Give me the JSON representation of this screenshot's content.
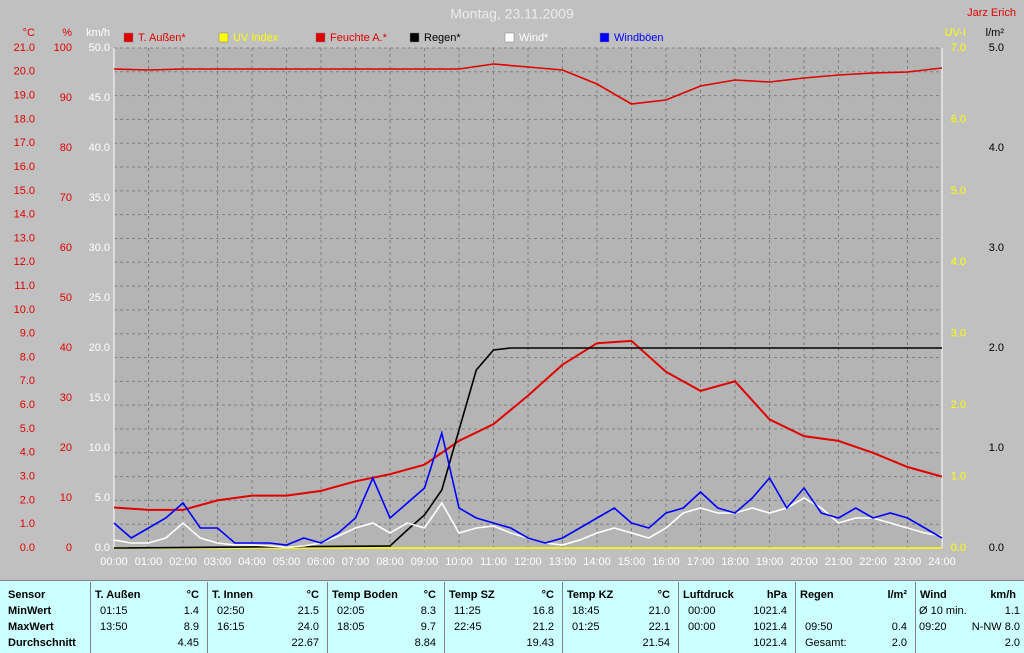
{
  "chart_data": {
    "type": "line",
    "title": "Montag, 23.11.2009",
    "author": "Jarz Erich",
    "xlim": [
      0,
      24
    ],
    "xticks": [
      {
        "value": 0,
        "label": "00:00"
      },
      {
        "value": 1,
        "label": "01:00"
      },
      {
        "value": 2,
        "label": "02:00"
      },
      {
        "value": 3,
        "label": "03:00"
      },
      {
        "value": 4,
        "label": "04:00"
      },
      {
        "value": 5,
        "label": "05:00"
      },
      {
        "value": 6,
        "label": "06:00"
      },
      {
        "value": 7,
        "label": "07:00"
      },
      {
        "value": 8,
        "label": "08:00"
      },
      {
        "value": 9,
        "label": "09:00"
      },
      {
        "value": 10,
        "label": "10:00"
      },
      {
        "value": 11,
        "label": "11:00"
      },
      {
        "value": 12,
        "label": "12:00"
      },
      {
        "value": 13,
        "label": "13:00"
      },
      {
        "value": 14,
        "label": "14:00"
      },
      {
        "value": 15,
        "label": "15:00"
      },
      {
        "value": 16,
        "label": "16:00"
      },
      {
        "value": 17,
        "label": "17:00"
      },
      {
        "value": 18,
        "label": "18:00"
      },
      {
        "value": 19,
        "label": "19:00"
      },
      {
        "value": 20,
        "label": "20:00"
      },
      {
        "value": 21,
        "label": "21:00"
      },
      {
        "value": 22,
        "label": "22:00"
      },
      {
        "value": 23,
        "label": "23:00"
      },
      {
        "value": 24,
        "label": "24:00"
      }
    ],
    "axes": [
      {
        "label": "°C",
        "color": "#e00000",
        "side": "left",
        "grid": true,
        "ylim": [
          0,
          21
        ],
        "yticks": [
          {
            "value": 0,
            "label": "0.0"
          },
          {
            "value": 1,
            "label": "1.0"
          },
          {
            "value": 2,
            "label": "2.0"
          },
          {
            "value": 3,
            "label": "3.0"
          },
          {
            "value": 4,
            "label": "4.0"
          },
          {
            "value": 5,
            "label": "5.0"
          },
          {
            "value": 6,
            "label": "6.0"
          },
          {
            "value": 7,
            "label": "7.0"
          },
          {
            "value": 8,
            "label": "8.0"
          },
          {
            "value": 9,
            "label": "9.0"
          },
          {
            "value": 10,
            "label": "10.0"
          },
          {
            "value": 11,
            "label": "11.0"
          },
          {
            "value": 12,
            "label": "12.0"
          },
          {
            "value": 13,
            "label": "13.0"
          },
          {
            "value": 14,
            "label": "14.0"
          },
          {
            "value": 15,
            "label": "15.0"
          },
          {
            "value": 16,
            "label": "16.0"
          },
          {
            "value": 17,
            "label": "17.0"
          },
          {
            "value": 18,
            "label": "18.0"
          },
          {
            "value": 19,
            "label": "19.0"
          },
          {
            "value": 20,
            "label": "20.0"
          },
          {
            "value": 21,
            "label": "21.0"
          }
        ]
      },
      {
        "label": "%",
        "color": "#e00000",
        "side": "left",
        "ylim": [
          0,
          100
        ],
        "yticks": [
          0,
          10,
          20,
          30,
          40,
          50,
          60,
          70,
          80,
          90,
          100
        ]
      },
      {
        "label": "km/h",
        "color": "#ffffff",
        "side": "left",
        "ylim": [
          0,
          50
        ],
        "yticks": [
          {
            "value": 0,
            "label": "0.0"
          },
          {
            "value": 5,
            "label": "5.0"
          },
          {
            "value": 10,
            "label": "10.0"
          },
          {
            "value": 15,
            "label": "15.0"
          },
          {
            "value": 20,
            "label": "20.0"
          },
          {
            "value": 25,
            "label": "25.0"
          },
          {
            "value": 30,
            "label": "30.0"
          },
          {
            "value": 35,
            "label": "35.0"
          },
          {
            "value": 40,
            "label": "40.0"
          },
          {
            "value": 45,
            "label": "45.0"
          },
          {
            "value": 50,
            "label": "50.0"
          }
        ]
      },
      {
        "label": "UV-I",
        "color": "#ffff00",
        "side": "right",
        "ylim": [
          0,
          7
        ],
        "yticks": [
          {
            "value": 0,
            "label": "0.0"
          },
          {
            "value": 1,
            "label": "1.0"
          },
          {
            "value": 2,
            "label": "2.0"
          },
          {
            "value": 3,
            "label": "3.0"
          },
          {
            "value": 4,
            "label": "4.0"
          },
          {
            "value": 5,
            "label": "5.0"
          },
          {
            "value": 6,
            "label": "6.0"
          },
          {
            "value": 7,
            "label": "7.0"
          }
        ]
      },
      {
        "label": "l/m²",
        "color": "#000000",
        "side": "right",
        "ylim": [
          0,
          5
        ],
        "yticks": [
          {
            "value": 0,
            "label": "0.0"
          },
          {
            "value": 1,
            "label": "1.0"
          },
          {
            "value": 2,
            "label": "2.0"
          },
          {
            "value": 3,
            "label": "3.0"
          },
          {
            "value": 4,
            "label": "4.0"
          },
          {
            "value": 5,
            "label": "5.0"
          }
        ]
      }
    ],
    "series": [
      {
        "name": "T. Außen*",
        "color": "#e00000",
        "axis": 0,
        "x": [
          0,
          1,
          2,
          3,
          4,
          5,
          6,
          7,
          8,
          9,
          10,
          11,
          12,
          13,
          14,
          15,
          16,
          17,
          18,
          19,
          20,
          21,
          22,
          23,
          24
        ],
        "values": [
          1.7,
          1.6,
          1.6,
          2.0,
          2.2,
          2.2,
          2.4,
          2.8,
          3.1,
          3.5,
          4.5,
          5.2,
          6.4,
          7.7,
          8.6,
          8.7,
          7.4,
          6.6,
          7.0,
          5.4,
          4.7,
          4.5,
          4.0,
          3.4,
          3.0
        ]
      },
      {
        "name": "UV Index",
        "color": "#ffff00",
        "axis": 3,
        "x": [
          0,
          24
        ],
        "values": [
          0,
          0
        ]
      },
      {
        "name": "Feuchte A.*",
        "color": "#e00000",
        "axis": 1,
        "x": [
          0,
          1,
          2,
          3,
          4,
          5,
          6,
          7,
          8,
          9,
          10,
          11,
          12,
          13,
          14,
          15,
          16,
          17,
          18,
          19,
          20,
          21,
          22,
          23,
          24
        ],
        "values": [
          95.8,
          95.6,
          95.8,
          95.8,
          95.8,
          95.8,
          95.8,
          95.8,
          95.8,
          95.8,
          95.8,
          96.8,
          96.2,
          95.6,
          92.8,
          88.8,
          89.6,
          92.4,
          93.6,
          93.2,
          94,
          94.6,
          95,
          95.2,
          96
        ]
      },
      {
        "name": "Regen*",
        "color": "#000000",
        "axis": 4,
        "x": [
          0,
          8,
          8.5,
          9,
          9.5,
          10,
          10.5,
          11,
          11.5,
          24
        ],
        "values": [
          0,
          0.02,
          0.18,
          0.33,
          0.58,
          1.18,
          1.78,
          1.98,
          2.0,
          2.0
        ]
      },
      {
        "name": "Wind*",
        "color": "#ffffff",
        "axis": 2,
        "x": [
          0,
          0.5,
          1,
          1.5,
          2,
          2.5,
          3,
          3.5,
          4,
          4.5,
          5,
          5.5,
          6,
          6.5,
          7,
          7.5,
          8,
          8.5,
          9,
          9.5,
          10,
          10.5,
          11,
          11.5,
          12,
          12.5,
          13,
          13.5,
          14,
          14.5,
          15,
          15.5,
          16,
          16.5,
          17,
          17.5,
          18,
          18.5,
          19,
          19.5,
          20,
          20.5,
          21,
          21.5,
          22,
          22.5,
          23,
          23.5,
          24
        ],
        "values": [
          0.8,
          0.5,
          0.5,
          1,
          2.5,
          1,
          0.5,
          0.3,
          0.3,
          0.2,
          0.1,
          0.2,
          0.5,
          1.2,
          2,
          2.5,
          1.5,
          2.5,
          2,
          4.5,
          1.5,
          2,
          2.2,
          1.5,
          1,
          0.5,
          0.3,
          0.8,
          1.5,
          2,
          1.5,
          1,
          2,
          3.5,
          4,
          3.5,
          3.5,
          4,
          3.5,
          4,
          5,
          4,
          2.5,
          3,
          3,
          2.5,
          2,
          1.5,
          1.2
        ]
      },
      {
        "name": "Windböen",
        "color": "#0000ff",
        "axis": 2,
        "x": [
          0,
          0.5,
          1,
          1.5,
          2,
          2.5,
          3,
          3.5,
          4,
          4.5,
          5,
          5.5,
          6,
          6.5,
          7,
          7.5,
          8,
          8.5,
          9,
          9.5,
          10,
          10.5,
          11,
          11.5,
          12,
          12.5,
          13,
          13.5,
          14,
          14.5,
          15,
          15.5,
          16,
          16.5,
          17,
          17.5,
          18,
          18.5,
          19,
          19.5,
          20,
          20.5,
          21,
          21.5,
          22,
          22.5,
          23,
          23.5,
          24
        ],
        "values": [
          2.5,
          1,
          2,
          3,
          4.5,
          2,
          2,
          0.5,
          0.5,
          0.5,
          0.3,
          1,
          0.5,
          1.5,
          3,
          7,
          3,
          4.5,
          6,
          11.5,
          4,
          3,
          2.5,
          2,
          1,
          0.5,
          1,
          2,
          3,
          4,
          2.5,
          2,
          3.5,
          4,
          5.6,
          4,
          3.5,
          5,
          7,
          4,
          6,
          3.5,
          3,
          4,
          3,
          3.5,
          3,
          2,
          1
        ]
      }
    ]
  },
  "table": {
    "header": "Sensor",
    "rows": [
      "MinWert",
      "MaxWert",
      "Durchschnitt"
    ],
    "groups": [
      {
        "name": "T. Außen",
        "unit": "°C",
        "cells": [
          {
            "time": "01:15",
            "value": "1.4"
          },
          {
            "time": "13:50",
            "value": "8.9"
          },
          {
            "value": "4.45"
          }
        ]
      },
      {
        "name": "T. Innen",
        "unit": "°C",
        "cells": [
          {
            "time": "02:50",
            "value": "21.5"
          },
          {
            "time": "16:15",
            "value": "24.0"
          },
          {
            "value": "22.67"
          }
        ]
      },
      {
        "name": "Temp Boden",
        "unit": "°C",
        "cells": [
          {
            "time": "02:05",
            "value": "8.3"
          },
          {
            "time": "18:05",
            "value": "9.7"
          },
          {
            "value": "8.84"
          }
        ]
      },
      {
        "name": "Temp SZ",
        "unit": "°C",
        "cells": [
          {
            "time": "11:25",
            "value": "16.8"
          },
          {
            "time": "22:45",
            "value": "21.2"
          },
          {
            "value": "19.43"
          }
        ]
      },
      {
        "name": "Temp KZ",
        "unit": "°C",
        "cells": [
          {
            "time": "18:45",
            "value": "21.0"
          },
          {
            "time": "01:25",
            "value": "22.1"
          },
          {
            "value": "21.54"
          }
        ]
      },
      {
        "name": "Luftdruck",
        "unit": "hPa",
        "cells": [
          {
            "time": "00:00",
            "value": "1021.4"
          },
          {
            "time": "00:00",
            "value": "1021.4"
          },
          {
            "value": "1021.4"
          }
        ]
      },
      {
        "name": "Regen",
        "unit": "l/m²",
        "cells": [
          null,
          {
            "time": "09:50",
            "value": "0.4"
          },
          {
            "time": "Gesamt:",
            "value": "2.0"
          }
        ]
      },
      {
        "name": "Wind",
        "unit": "km/h",
        "cells": [
          {
            "time": "Ø 10 min.",
            "value": "1.1"
          },
          {
            "time": "09:20",
            "value": "N-NW 8.0"
          },
          {
            "value": "2.0"
          }
        ]
      }
    ]
  }
}
